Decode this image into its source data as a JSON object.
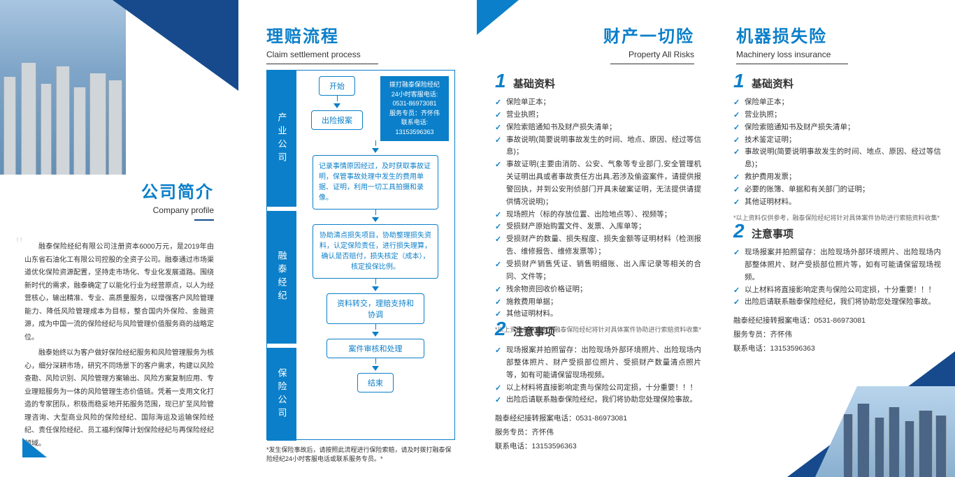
{
  "panel1": {
    "title_zh": "公司简介",
    "title_en": "Company profile",
    "para1": "融泰保险经纪有限公司注册资本6000万元，是2019年由山东省石油化工有限公司控股的全资子公司。融泰通过市场渠道优化保险资源配置，坚持走市场化、专业化发展道路。围绕新时代的需求，融泰确定了以能化行业为经营原点，以人为经营核心，输出精准、专业、高质量服务，以增强客户风险管理能力、降低风险管理成本为目标，整合国内外保险、金融资源，成为中国一流的保险经纪与风险管理价值服务商的战略定位。",
    "para2": "融泰始终以为客户做好保险经纪服务和风险管理服务为核心，细分深耕市场，研究不同场景下的客户需求，构建以风险查勘、风险识别、风险管理方案输出、风险方案复制应用、专业理赔服务为一体的风险管理生态价值链。凭着一支用文化打造的专家团队，积极而稳妥地开拓服务范围，现已扩至风险管理咨询、大型商业风险的保险经纪、国际海运及运输保险经纪、责任保险经纪、员工福利保障计划保险经纪与再保险经纪领域。"
  },
  "panel2": {
    "title_zh": "理赔流程",
    "title_en": "Claim settlement process",
    "left_labels": [
      "产业公司",
      "融泰经纪",
      "保险公司"
    ],
    "contact": {
      "l1": "拨打融泰保险经纪",
      "l2": "24小时客服电话:",
      "l3": "0531-86973081",
      "l4": "服务专员：齐怀伟",
      "l5": "联系电话:",
      "l6": "13153596363"
    },
    "steps": {
      "s1": "开始",
      "s2": "出险报案",
      "s3": "记录事情原因经过，及时获取事故证明，保管事故处理中发生的费用单据、证明，利用一切工具拍摄和录像。",
      "s4": "协助清点损失项目，协助整理损失资料，认定保险责任，进行损失理算，确认是否赔付，损失核定（成本），核定投保比例。",
      "s5": "资料转交，理赔支持和协调",
      "s6": "案件审核和处理",
      "s7": "结束"
    },
    "footnote": "*发生保险事故后，请按照此流程进行保险索赔，请及时拨打融泰保险经纪24小时客服电话或联系服务专员。*"
  },
  "panel3": {
    "title_zh": "财产一切险",
    "title_en": "Property All Risks",
    "sec1_title": "基础资料",
    "sec1_items": [
      "保险单正本；",
      "营业执照；",
      "保险索赔通知书及财产损失清单；",
      "事故说明(简要说明事故发生的时间、地点、原因、经过等信息)；",
      "事故证明(主要由消防、公安、气象等专业部门,安全管理机关证明出具或者事故责任方出具,若涉及偷盗案件，请提供报警回执，并到公安刑侦部门开具未破案证明，无法提供请提供情况说明)；",
      "现场照片（标的存放位置、出险地点等）、视频等；",
      "受损财产原始购置文件、发票、入库单等；",
      "受损财产的数量、损失程度、损失金额等证明材料（检测报告、维修报告、维修发票等）；",
      "受损财产销售凭证、销售明细账、出入库记录等相关的合同、文件等；",
      "残余物资回收价格证明；",
      "施救费用单据；",
      "其他证明材料。"
    ],
    "sec1_note": "*以上资料仅供参考，融泰保险经纪将针对具体案件协助进行索赔资料收集*",
    "sec2_title": "注意事项",
    "sec2_items": [
      "现场报案并拍照留存：出险现场外部环境照片、出险现场内部整体照片、财产受损部位照片、受损财产数量清点照片等，如有可能请保留现场视频。",
      "以上材料将直接影响定责与保险公司定损，十分重要！！！",
      "出险后请联系融泰保险经纪，我们将协助您处理保险事故。"
    ],
    "contact": {
      "l1": "融泰经纪接转报案电话：0531-86973081",
      "l2": "服务专员：齐怀伟",
      "l3": "联系电话：13153596363"
    }
  },
  "panel4": {
    "title_zh": "机器损失险",
    "title_en": "Machinery loss insurance",
    "sec1_title": "基础资料",
    "sec1_items": [
      "保险单正本；",
      "营业执照；",
      "保险索赔通知书及财产损失清单；",
      "技术鉴定证明；",
      "事故说明(简要说明事故发生的时间、地点、原因、经过等信息)；",
      "救护费用发票；",
      "必要的账簿、单据和有关部门的证明；",
      "其他证明材料。"
    ],
    "sec1_note": "*以上资料仅供参考，融泰保险经纪将针对具体案件协助进行索赔资料收集*",
    "sec2_title": "注意事项",
    "sec2_items": [
      "现场报案并拍照留存：出险现场外部环境照片、出险现场内部整体照片、财产受损部位照片等，如有可能请保留现场视频。",
      "以上材料将直接影响定责与保险公司定损，十分重要！！！",
      "出险后请联系融泰保险经纪，我们将协助您处理保险事故。"
    ],
    "contact": {
      "l1": "融泰经纪接转报案电话：0531-86973081",
      "l2": "服务专员：齐怀伟",
      "l3": "联系电话：13153596363"
    }
  }
}
